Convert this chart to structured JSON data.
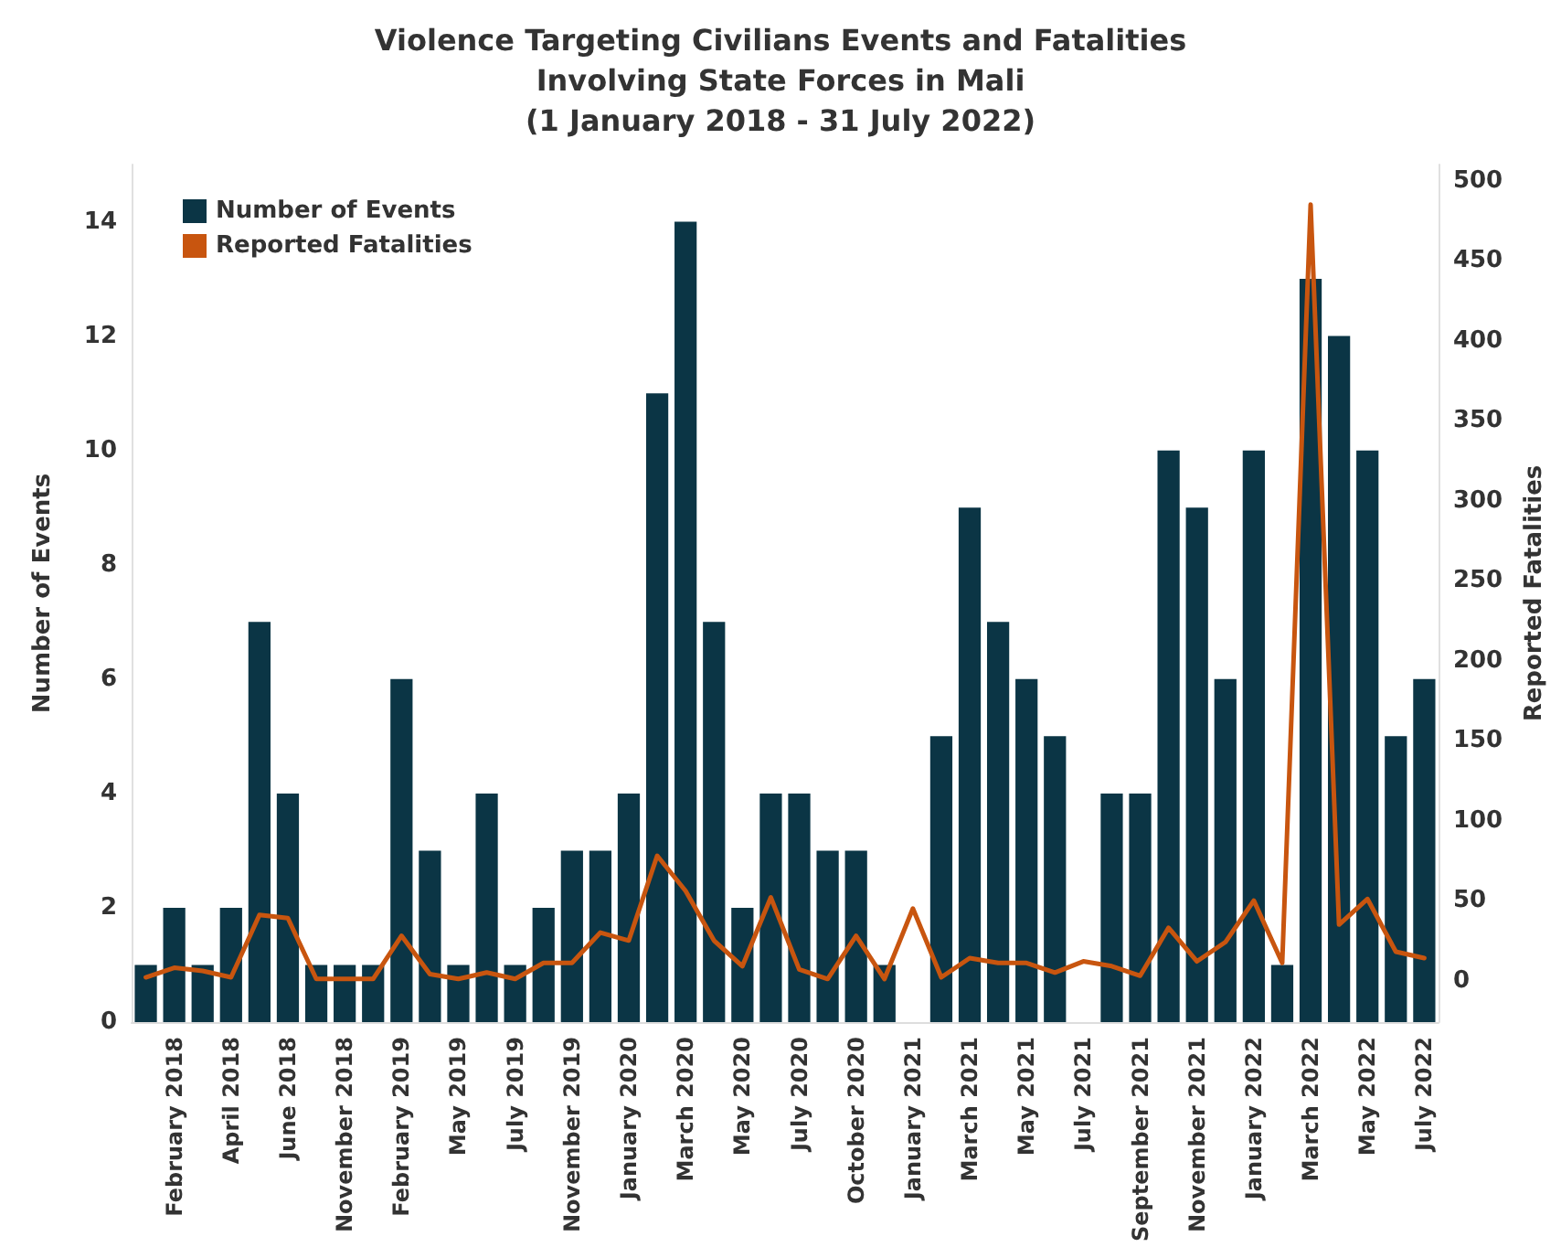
{
  "chart_data": {
    "type": "bar",
    "title": "Violence Targeting Civilians Events and Fatalities\nInvolving State Forces in Mali\n(1 January 2018 - 31 July 2022)",
    "categories": [
      null,
      "February 2018",
      null,
      "April 2018",
      null,
      "June 2018",
      null,
      "November 2018",
      null,
      "February 2019",
      null,
      "May 2019",
      null,
      "July 2019",
      null,
      "November 2019",
      null,
      "January 2020",
      null,
      "March 2020",
      null,
      "May 2020",
      null,
      "July 2020",
      null,
      "October 2020",
      null,
      "January 2021",
      null,
      "March 2021",
      null,
      "May 2021",
      null,
      "July 2021",
      null,
      "September 2021",
      null,
      "November 2021",
      null,
      "January 2022",
      null,
      "March 2022",
      null,
      "May 2022",
      null,
      "July 2022"
    ],
    "series": [
      {
        "name": "Number of Events",
        "color": "#0b3545",
        "values": [
          1,
          2,
          1,
          2,
          7,
          4,
          1,
          1,
          1,
          6,
          3,
          1,
          4,
          1,
          2,
          3,
          3,
          4,
          11,
          14,
          7,
          2,
          4,
          4,
          3,
          3,
          1,
          null,
          5,
          9,
          7,
          6,
          5,
          null,
          4,
          4,
          10,
          9,
          6,
          10,
          1,
          13,
          12,
          10,
          5,
          6
        ]
      },
      {
        "name": "Reported Fatalities",
        "type": "line",
        "axis": "y2",
        "color": "#c8550f",
        "values": [
          2,
          8,
          6,
          2,
          41,
          39,
          1,
          1,
          1,
          28,
          4,
          1,
          5,
          1,
          11,
          11,
          30,
          25,
          78,
          56,
          25,
          9,
          52,
          7,
          1,
          28,
          1,
          45,
          2,
          14,
          11,
          11,
          5,
          12,
          9,
          3,
          33,
          12,
          24,
          50,
          11,
          485,
          35,
          51,
          18,
          14
        ]
      }
    ],
    "ylabel": "Number of Events",
    "y2label": "Reported Fatalities",
    "ylim": [
      0,
      15
    ],
    "yticks": [
      0,
      2,
      4,
      6,
      8,
      10,
      12,
      14
    ],
    "y2lim": [
      -26,
      510
    ],
    "y2ticks": [
      0,
      50,
      100,
      150,
      200,
      250,
      300,
      350,
      400,
      450,
      500
    ],
    "legend": "top left",
    "marker": "none",
    "line_style": "solid",
    "grid": false
  }
}
